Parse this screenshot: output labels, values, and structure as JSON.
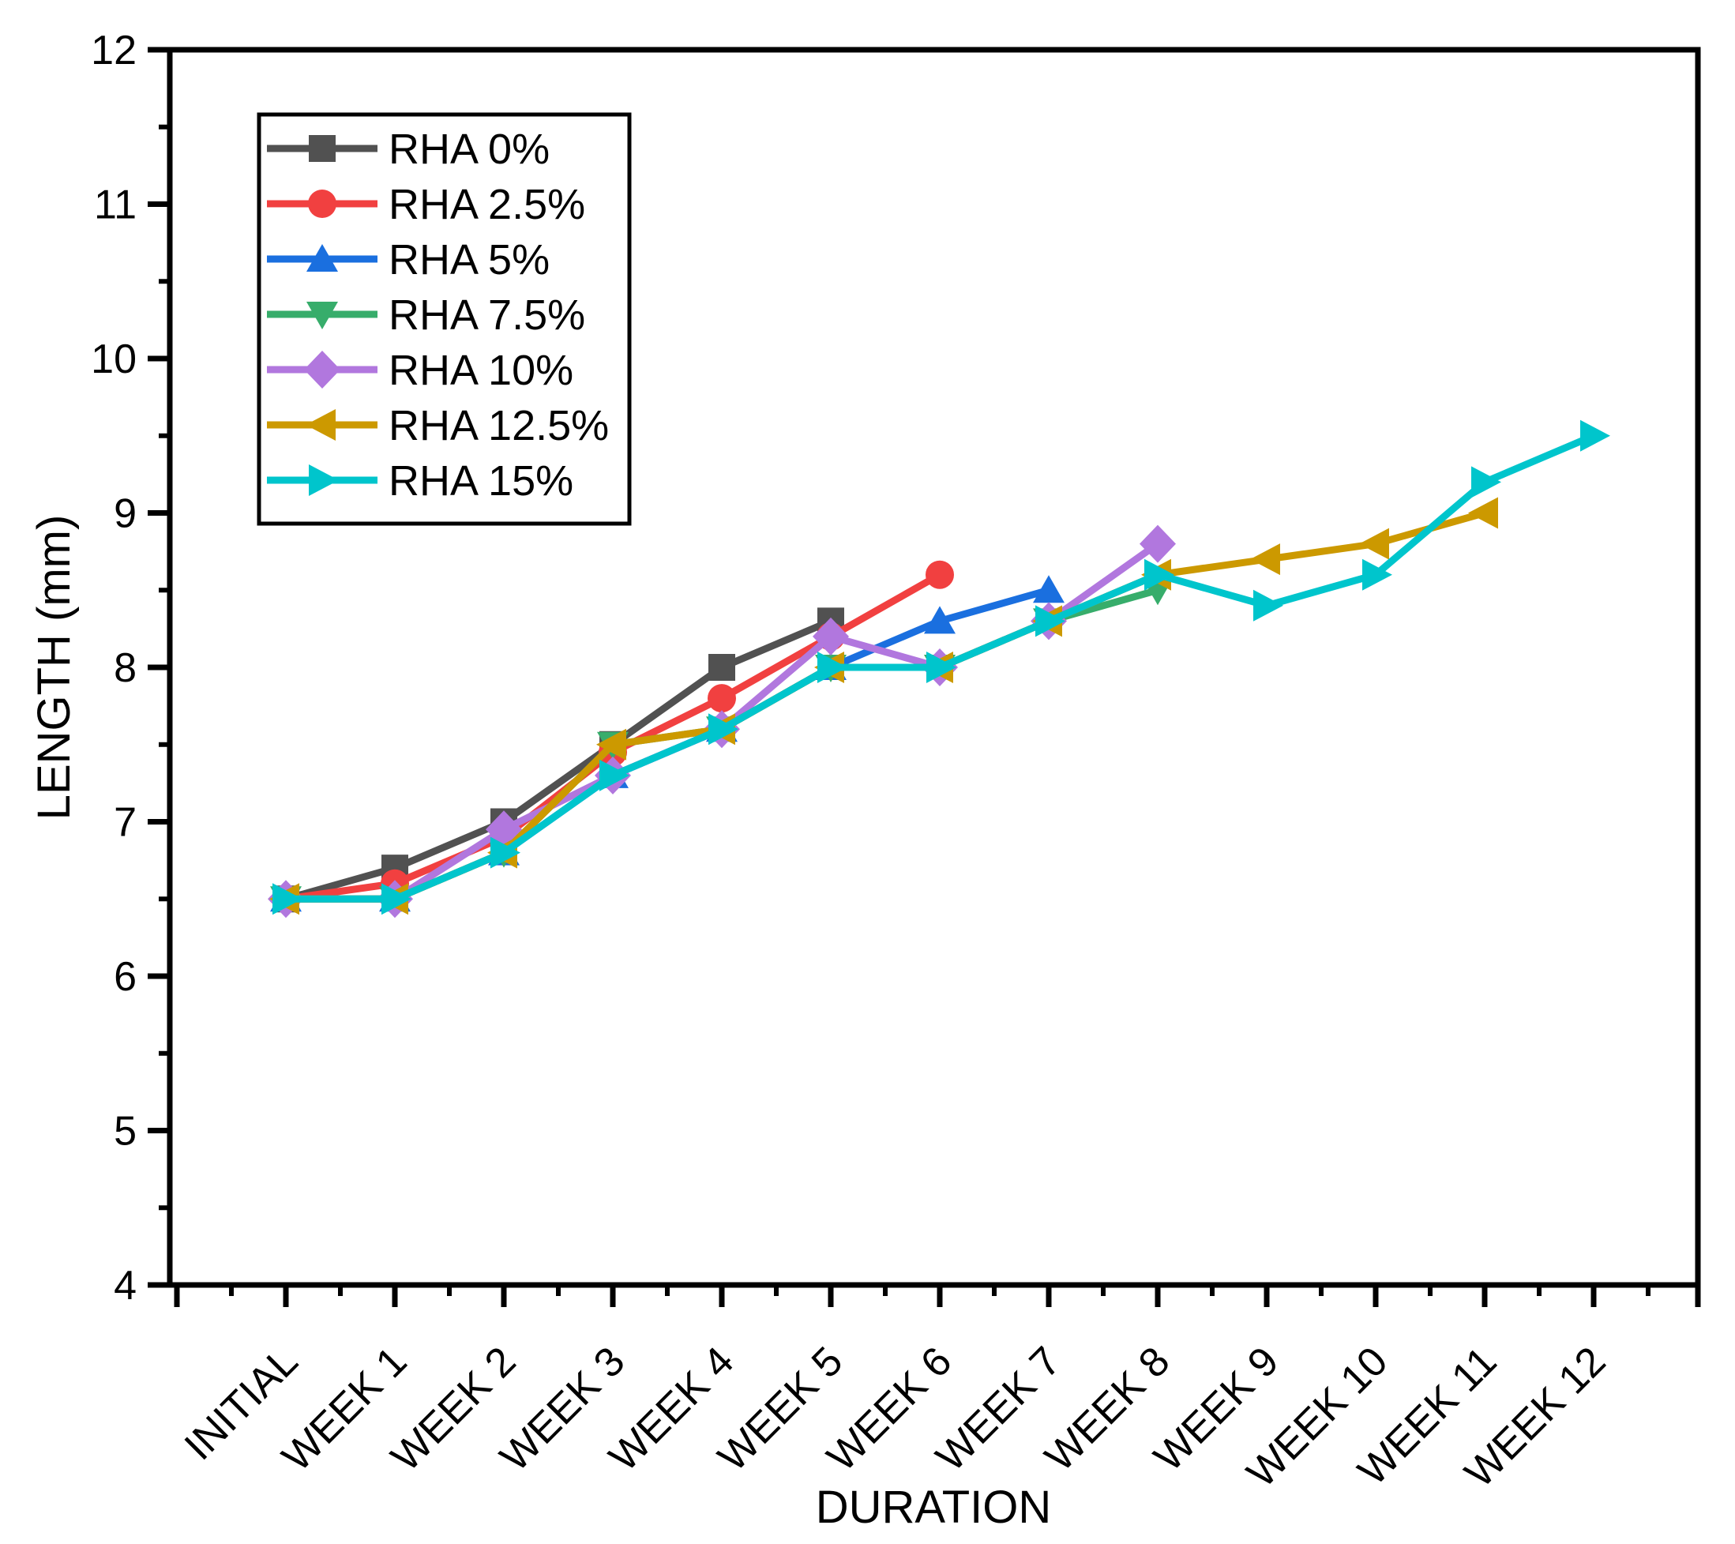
{
  "chart_data": {
    "type": "line",
    "title": "",
    "xlabel": "DURATION",
    "ylabel": "LENGTH (mm)",
    "categories": [
      "INITIAL",
      "WEEK 1",
      "WEEK 2",
      "WEEK 3",
      "WEEK 4",
      "WEEK 5",
      "WEEK 6",
      "WEEK 7",
      "WEEK 8",
      "WEEK 9",
      "WEEK 10",
      "WEEK 11",
      "WEEK 12"
    ],
    "ylim": [
      4,
      12
    ],
    "y_major_step": 1,
    "y_minor_step": 0.5,
    "y_tick_labels": [
      "4",
      "5",
      "6",
      "7",
      "8",
      "9",
      "10",
      "11",
      "12"
    ],
    "grid": false,
    "legend_position": "top-left",
    "background": "#ffffff",
    "axis_color": "#000000",
    "series": [
      {
        "name": "RHA 0%",
        "color": "#515151",
        "marker": "square",
        "values": [
          6.5,
          6.7,
          7.0,
          7.5,
          8.0,
          8.3
        ]
      },
      {
        "name": "RHA 2.5%",
        "color": "#F14040",
        "marker": "circle",
        "values": [
          6.5,
          6.6,
          6.9,
          7.45,
          7.8,
          8.2,
          8.6
        ]
      },
      {
        "name": "RHA 5%",
        "color": "#1A6FDF",
        "marker": "triangle-up",
        "values": [
          6.5,
          6.5,
          6.8,
          7.3,
          7.6,
          8.0,
          8.3,
          8.5
        ]
      },
      {
        "name": "RHA 7.5%",
        "color": "#37AD6B",
        "marker": "triangle-down",
        "values": [
          6.5,
          6.5,
          6.8,
          7.5,
          7.6,
          8.0,
          8.0,
          8.3,
          8.5
        ]
      },
      {
        "name": "RHA 10%",
        "color": "#B177DE",
        "marker": "diamond",
        "values": [
          6.5,
          6.5,
          6.95,
          7.3,
          7.6,
          8.2,
          8.0,
          8.3,
          8.8
        ]
      },
      {
        "name": "RHA 12.5%",
        "color": "#CC9900",
        "marker": "triangle-left",
        "values": [
          6.5,
          6.5,
          6.8,
          7.5,
          7.6,
          8.0,
          8.0,
          8.3,
          8.6,
          8.7,
          8.8,
          9.0
        ]
      },
      {
        "name": "RHA 15%",
        "color": "#00C5CC",
        "marker": "triangle-right",
        "values": [
          6.5,
          6.5,
          6.8,
          7.3,
          7.6,
          8.0,
          8.0,
          8.3,
          8.6,
          8.4,
          8.6,
          9.2,
          9.5
        ]
      }
    ]
  }
}
